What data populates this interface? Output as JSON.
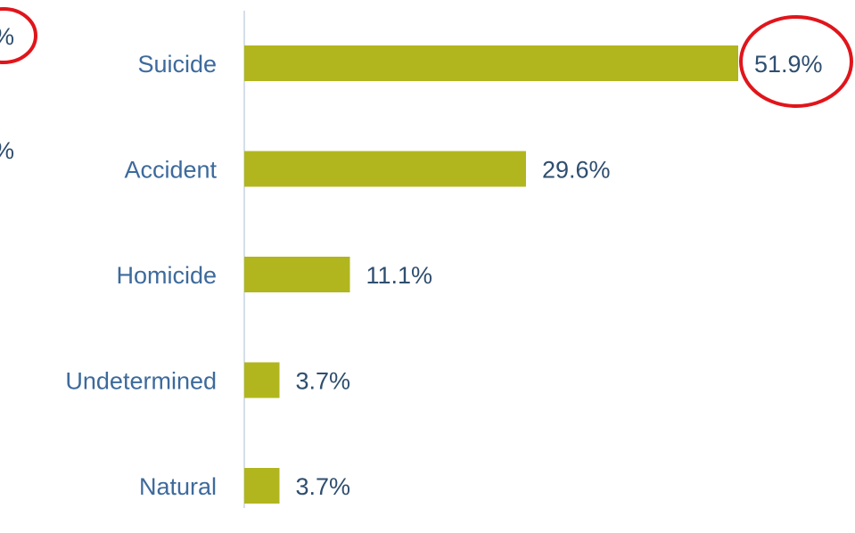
{
  "chart_data": {
    "type": "bar",
    "orientation": "horizontal",
    "categories": [
      "Suicide",
      "Accident",
      "Homicide",
      "Undetermined",
      "Natural"
    ],
    "values": [
      51.9,
      29.6,
      11.1,
      3.7,
      3.7
    ],
    "value_labels": [
      "51.9%",
      "29.6%",
      "11.1%",
      "3.7%",
      "3.7%"
    ],
    "title": "",
    "xlabel": "",
    "ylabel": "",
    "xlim": [
      0,
      51.9
    ],
    "grid": false,
    "legend": "none",
    "highlighted": [
      "Suicide"
    ]
  },
  "cutoff_left": {
    "labels": [
      "%",
      "%"
    ]
  },
  "colors": {
    "bar": "#b1b61e",
    "category_text": "#3d6a9c",
    "value_text": "#2f4e6f",
    "axis": "#c9d3e3",
    "highlight_circle": "#e0151b"
  }
}
